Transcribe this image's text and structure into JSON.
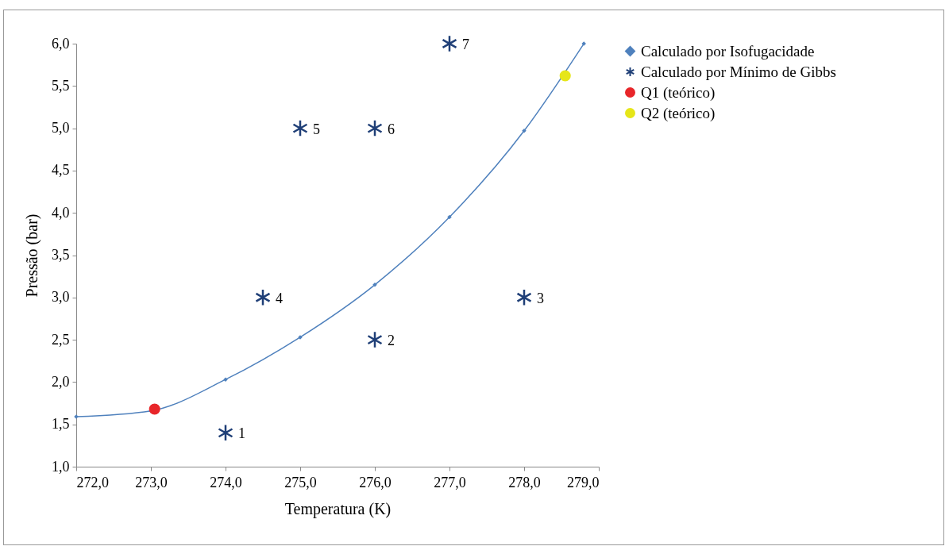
{
  "chart_data": {
    "type": "scatter",
    "xlabel": "Temperatura (K)",
    "ylabel": "Pressão (bar)",
    "xlim": [
      272,
      279
    ],
    "ylim": [
      1,
      6
    ],
    "xticks": [
      {
        "value": 272,
        "label": "272,0"
      },
      {
        "value": 273,
        "label": "273,0"
      },
      {
        "value": 274,
        "label": "274,0"
      },
      {
        "value": 275,
        "label": "275,0"
      },
      {
        "value": 276,
        "label": "276,0"
      },
      {
        "value": 277,
        "label": "277,0"
      },
      {
        "value": 278,
        "label": "278,0"
      },
      {
        "value": 279,
        "label": "279,0"
      }
    ],
    "yticks": [
      {
        "value": 1,
        "label": "1,0"
      },
      {
        "value": 1.5,
        "label": "1,5"
      },
      {
        "value": 2,
        "label": "2,0"
      },
      {
        "value": 2.5,
        "label": "2,5"
      },
      {
        "value": 3,
        "label": "3,0"
      },
      {
        "value": 3.5,
        "label": "3,5"
      },
      {
        "value": 4,
        "label": "4,0"
      },
      {
        "value": 4.5,
        "label": "4,5"
      },
      {
        "value": 5,
        "label": "5,0"
      },
      {
        "value": 5.5,
        "label": "5,5"
      },
      {
        "value": 6,
        "label": "6,0"
      }
    ],
    "grid": false,
    "legend": "right",
    "series": [
      {
        "name": "Calculado por Isofugacidade",
        "type": "line",
        "marker": "diamond",
        "color": "#4f81bd",
        "x": [
          272,
          273,
          274,
          275,
          276,
          277,
          278,
          278.8
        ],
        "values": [
          1.59,
          1.66,
          2.03,
          2.53,
          3.15,
          3.95,
          4.97,
          6.0
        ]
      },
      {
        "name": "Calculado por Mínimo de Gibbs",
        "type": "scatter",
        "marker": "cross",
        "color": "#1f3f77",
        "x": [
          274,
          276,
          278,
          274.5,
          275,
          276,
          277
        ],
        "values": [
          1.4,
          2.5,
          3.0,
          3.0,
          5.0,
          5.0,
          6.0
        ]
      },
      {
        "name": "Q1 (teórico)",
        "type": "scatter",
        "marker": "circle",
        "color": "#e8262a",
        "x": [
          273.05
        ],
        "values": [
          1.68
        ]
      },
      {
        "name": "Q2 (teórico)",
        "type": "scatter",
        "marker": "circle",
        "color": "#e6e619",
        "x": [
          278.55
        ],
        "values": [
          5.62
        ]
      }
    ],
    "annotations": [
      {
        "text": "1",
        "x": 274,
        "y": 1.4
      },
      {
        "text": "2",
        "x": 276,
        "y": 2.5
      },
      {
        "text": "3",
        "x": 278,
        "y": 3.0
      },
      {
        "text": "4",
        "x": 274.5,
        "y": 3.0
      },
      {
        "text": "5",
        "x": 275,
        "y": 5.0
      },
      {
        "text": "6",
        "x": 276,
        "y": 5.0
      },
      {
        "text": "7",
        "x": 277,
        "y": 6.0
      }
    ]
  }
}
